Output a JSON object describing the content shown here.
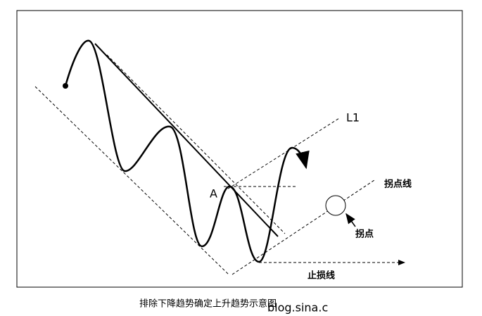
{
  "labels": {
    "l1": "L1",
    "a": "A",
    "turn_line": "拐点线",
    "turn_point": "拐点",
    "stop_line": "止损线"
  },
  "caption": "排除下降趋势确定上升趋势示意图",
  "watermark": "blog.sina.c"
}
